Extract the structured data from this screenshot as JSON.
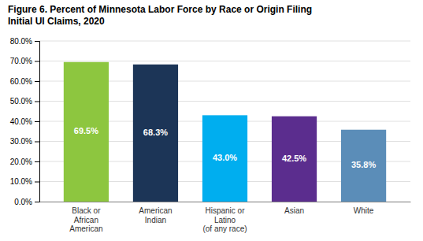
{
  "chart_data": {
    "type": "bar",
    "title": "Figure 6. Percent of Minnesota Labor Force by Race or Origin Filing\nInitial UI Claims, 2020",
    "categories": [
      "Black or\nAfrican\nAmerican",
      "American\nIndian",
      "Hispanic or\nLatino\n(of any race)",
      "Asian",
      "White"
    ],
    "values": [
      69.5,
      68.3,
      43.0,
      42.5,
      35.8
    ],
    "value_labels": [
      "69.5%",
      "68.3%",
      "43.0%",
      "42.5%",
      "35.8%"
    ],
    "data_labels": true,
    "colors": [
      "#8DC63F",
      "#1C3557",
      "#00AEEF",
      "#5B2D8E",
      "#5B8DB8"
    ],
    "ylim": [
      0,
      80
    ],
    "yticks": [
      {
        "value": 0,
        "label": "0.0%"
      },
      {
        "value": 10,
        "label": "10.0%"
      },
      {
        "value": 20,
        "label": "20.0%"
      },
      {
        "value": 30,
        "label": "30.0%"
      },
      {
        "value": 40,
        "label": "40.0%"
      },
      {
        "value": 50,
        "label": "50.0%"
      },
      {
        "value": 60,
        "label": "60.0%"
      },
      {
        "value": 70,
        "label": "70.0%"
      },
      {
        "value": 80,
        "label": "80.0%"
      }
    ],
    "grid": true
  }
}
